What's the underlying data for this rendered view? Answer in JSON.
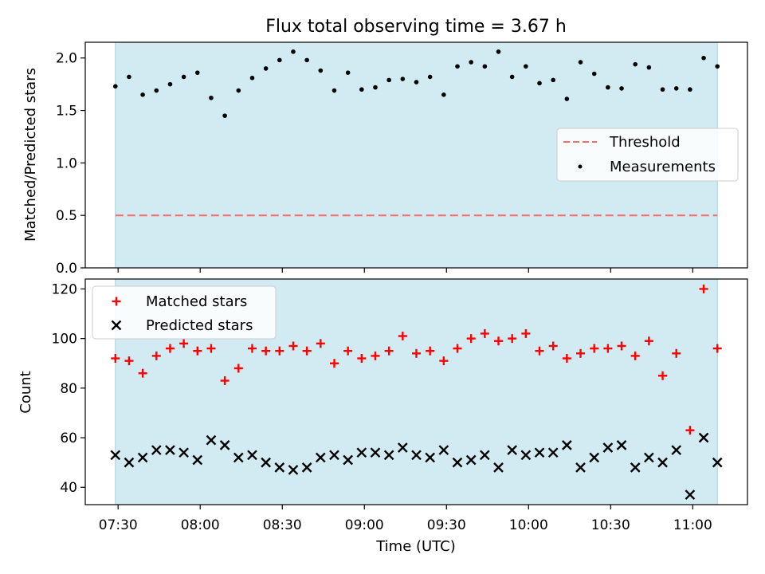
{
  "chart_data": {
    "type": "scatter",
    "title": "Flux total observing time = 3.67 h",
    "xlabel": "Time (UTC)",
    "x_tick_labels": [
      "07:30",
      "08:00",
      "08:30",
      "09:00",
      "09:30",
      "10:00",
      "10:30",
      "11:00"
    ],
    "x_tick_minutes": [
      450,
      480,
      510,
      540,
      570,
      600,
      630,
      660
    ],
    "x_range_minutes": [
      438,
      680
    ],
    "observing_window_minutes": [
      449,
      669
    ],
    "observing_window_color": "#d2eaf1",
    "sample_times": [
      "07:29",
      "07:34",
      "07:39",
      "07:44",
      "07:49",
      "07:54",
      "07:59",
      "08:04",
      "08:09",
      "08:14",
      "08:19",
      "08:24",
      "08:29",
      "08:34",
      "08:39",
      "08:44",
      "08:49",
      "08:54",
      "08:59",
      "09:04",
      "09:09",
      "09:14",
      "09:19",
      "09:24",
      "09:29",
      "09:34",
      "09:39",
      "09:44",
      "09:49",
      "09:54",
      "09:59",
      "10:04",
      "10:09",
      "10:14",
      "10:19",
      "10:24",
      "10:29",
      "10:34",
      "10:39",
      "10:44",
      "10:49",
      "10:54",
      "10:59",
      "11:04",
      "11:09"
    ],
    "top_panel": {
      "ylabel": "Matched/Predicted stars",
      "ylim": [
        0.0,
        2.15
      ],
      "yticks": [
        "0.0",
        "0.5",
        "1.0",
        "1.5",
        "2.0"
      ],
      "threshold": 0.5,
      "threshold_color": "#f07070",
      "measurement_color": "#000000",
      "legend": {
        "placement": "center-right",
        "threshold_label": "Threshold",
        "measurements_label": "Measurements"
      },
      "series": [
        {
          "name": "Measurements",
          "values": [
            1.73,
            1.82,
            1.65,
            1.69,
            1.75,
            1.82,
            1.86,
            1.62,
            1.45,
            1.69,
            1.81,
            1.9,
            1.98,
            2.06,
            1.98,
            1.88,
            1.69,
            1.86,
            1.7,
            1.72,
            1.79,
            1.8,
            1.77,
            1.82,
            1.65,
            1.92,
            1.96,
            1.92,
            2.06,
            1.82,
            1.92,
            1.76,
            1.79,
            1.61,
            1.96,
            1.85,
            1.72,
            1.71,
            1.94,
            1.91,
            1.7,
            1.71,
            1.7,
            2.0,
            1.92
          ]
        }
      ]
    },
    "bottom_panel": {
      "ylabel": "Count",
      "ylim": [
        33,
        124
      ],
      "yticks": [
        "40",
        "60",
        "80",
        "100",
        "120"
      ],
      "matched_color": "#ff0000",
      "predicted_color": "#000000",
      "legend": {
        "placement": "top-left",
        "matched_label": "Matched stars",
        "predicted_label": "Predicted stars"
      },
      "series": [
        {
          "name": "Matched stars",
          "values": [
            92,
            91,
            86,
            93,
            96,
            98,
            95,
            96,
            83,
            88,
            96,
            95,
            95,
            97,
            95,
            98,
            90,
            95,
            92,
            93,
            95,
            101,
            94,
            95,
            91,
            96,
            100,
            102,
            99,
            100,
            102,
            95,
            97,
            92,
            94,
            96,
            96,
            97,
            93,
            99,
            85,
            94,
            63,
            120,
            96
          ]
        },
        {
          "name": "Predicted stars",
          "values": [
            53,
            50,
            52,
            55,
            55,
            54,
            51,
            59,
            57,
            52,
            53,
            50,
            48,
            47,
            48,
            52,
            53,
            51,
            54,
            54,
            53,
            56,
            53,
            52,
            55,
            50,
            51,
            53,
            48,
            55,
            53,
            54,
            54,
            57,
            48,
            52,
            56,
            57,
            48,
            52,
            50,
            55,
            37,
            60,
            50
          ]
        }
      ]
    }
  }
}
